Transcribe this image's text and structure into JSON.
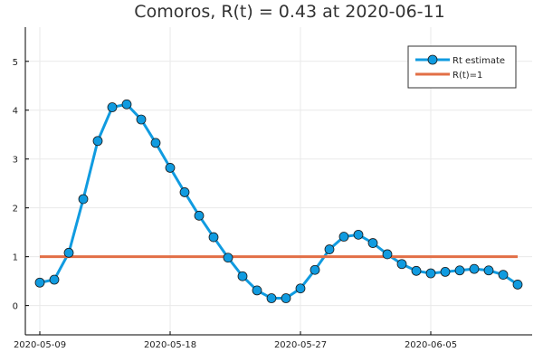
{
  "chart_data": {
    "type": "line",
    "title": "Comoros, R(t) = 0.43 at 2020-06-11",
    "xlabel": "",
    "ylabel": "",
    "x_start": "2020-05-09",
    "xlim": [
      "2020-05-08",
      "2020-06-12"
    ],
    "ylim": [
      -0.6,
      5.7
    ],
    "x_ticks": [
      "2020-05-09",
      "2020-05-18",
      "2020-05-27",
      "2020-06-05"
    ],
    "y_ticks": [
      0,
      1,
      2,
      3,
      4,
      5
    ],
    "grid": true,
    "legend_position": "top-right",
    "colors": {
      "rt": "#109BE0",
      "ref": "#E26F46"
    },
    "series": [
      {
        "name": "Rt estimate",
        "x": [
          "2020-05-09",
          "2020-05-10",
          "2020-05-11",
          "2020-05-12",
          "2020-05-13",
          "2020-05-14",
          "2020-05-15",
          "2020-05-16",
          "2020-05-17",
          "2020-05-18",
          "2020-05-19",
          "2020-05-20",
          "2020-05-21",
          "2020-05-22",
          "2020-05-23",
          "2020-05-24",
          "2020-05-25",
          "2020-05-26",
          "2020-05-27",
          "2020-05-28",
          "2020-05-29",
          "2020-05-30",
          "2020-05-31",
          "2020-06-01",
          "2020-06-02",
          "2020-06-03",
          "2020-06-04",
          "2020-06-05",
          "2020-06-06",
          "2020-06-07",
          "2020-06-08",
          "2020-06-09",
          "2020-06-10",
          "2020-06-11"
        ],
        "values": [
          0.47,
          0.53,
          1.08,
          2.18,
          3.37,
          4.06,
          4.12,
          3.81,
          3.33,
          2.82,
          2.32,
          1.84,
          1.4,
          0.98,
          0.6,
          0.31,
          0.15,
          0.15,
          0.35,
          0.73,
          1.15,
          1.41,
          1.45,
          1.28,
          1.05,
          0.85,
          0.71,
          0.66,
          0.69,
          0.72,
          0.75,
          0.72,
          0.63,
          0.43
        ]
      },
      {
        "name": "R(t)=1",
        "x": [
          "2020-05-09",
          "2020-06-11"
        ],
        "values": [
          1,
          1
        ]
      }
    ]
  }
}
